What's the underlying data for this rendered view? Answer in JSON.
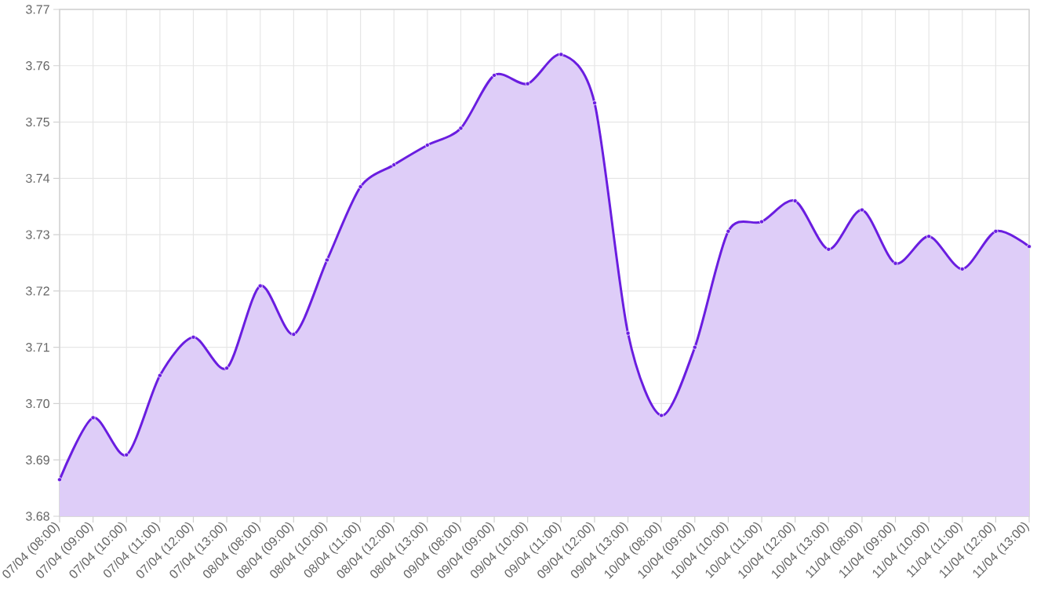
{
  "chart_data": {
    "type": "area",
    "categories": [
      "07/04 (08:00)",
      "07/04 (09:00)",
      "07/04 (10:00)",
      "07/04 (11:00)",
      "07/04 (12:00)",
      "07/04 (13:00)",
      "08/04 (08:00)",
      "08/04 (09:00)",
      "08/04 (10:00)",
      "08/04 (11:00)",
      "08/04 (12:00)",
      "08/04 (13:00)",
      "09/04 (08:00)",
      "09/04 (09:00)",
      "09/04 (10:00)",
      "09/04 (11:00)",
      "09/04 (12:00)",
      "09/04 (13:00)",
      "10/04 (08:00)",
      "10/04 (09:00)",
      "10/04 (10:00)",
      "10/04 (11:00)",
      "10/04 (12:00)",
      "10/04 (13:00)",
      "11/04 (08:00)",
      "11/04 (09:00)",
      "11/04 (10:00)",
      "11/04 (11:00)",
      "11/04 (12:00)",
      "11/04 (13:00)"
    ],
    "values": [
      3.6865,
      3.6975,
      3.6909,
      3.705,
      3.7118,
      3.7063,
      3.7209,
      3.7123,
      3.7255,
      3.7385,
      3.7424,
      3.7459,
      3.7489,
      3.7583,
      3.7568,
      3.762,
      3.7534,
      3.7125,
      3.6979,
      3.71,
      3.7306,
      3.7323,
      3.736,
      3.7274,
      3.7344,
      3.7249,
      3.7297,
      3.7239,
      3.7306,
      3.7279
    ],
    "color": "#6a1de0",
    "ylim": [
      3.68,
      3.77
    ],
    "yticks": [
      3.68,
      3.69,
      {
        "value": 3.7,
        "label": "3.70"
      },
      3.71,
      3.72,
      3.73,
      3.74,
      3.75,
      3.76,
      3.77
    ],
    "grid": true,
    "marker": "circle"
  }
}
